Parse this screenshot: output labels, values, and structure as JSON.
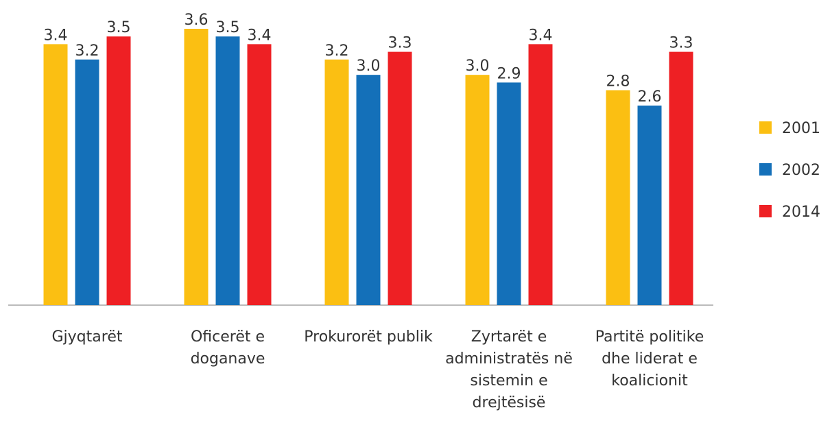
{
  "chart_data": {
    "type": "bar",
    "categories": [
      "Gjyqtarët",
      "Oficerët e doganave",
      "Prokurorët publik",
      "Zyrtarët e administratës në sistemin e drejtësisë",
      "Partitë politike dhe liderat e koalicionit"
    ],
    "series": [
      {
        "name": "2001",
        "color": "#fbbf12",
        "values": [
          3.4,
          3.6,
          3.2,
          3.0,
          2.8
        ],
        "value_labels": [
          "3.4",
          "3.6",
          "3.2",
          "3.0",
          "2.8"
        ]
      },
      {
        "name": "2002",
        "color": "#1470b9",
        "values": [
          3.2,
          3.5,
          3.0,
          2.9,
          2.6
        ],
        "value_labels": [
          "3.2",
          "3.5",
          "3.0",
          "2.9",
          "2.6"
        ]
      },
      {
        "name": "2014",
        "color": "#ee2024",
        "values": [
          3.5,
          3.4,
          3.3,
          3.4,
          3.3
        ],
        "value_labels": [
          "3.5",
          "3.4",
          "3.3",
          "3.4",
          "3.3"
        ]
      }
    ],
    "ylim": [
      0,
      3.6
    ],
    "legend": "right"
  }
}
